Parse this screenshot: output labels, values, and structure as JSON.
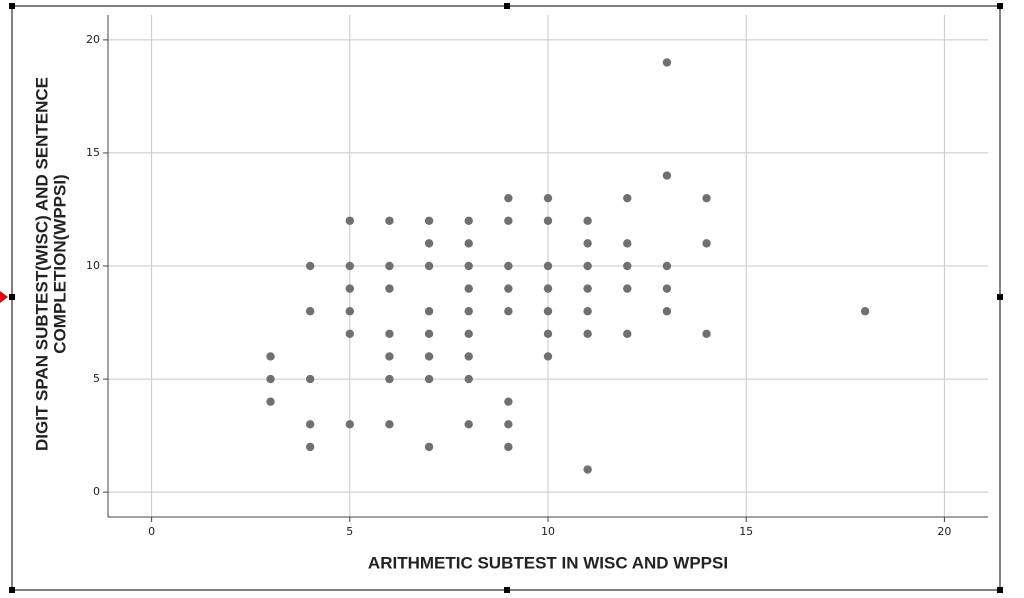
{
  "chart_data": {
    "type": "scatter",
    "xlabel": "ARITHMETIC SUBTEST IN WISC AND WPPSI",
    "ylabel": [
      "DIGIT SPAN SUBTEST(WISC) AND SENTENCE",
      "COMPLETION(WPPSI)"
    ],
    "x": [
      3,
      3,
      3,
      4,
      4,
      4,
      4,
      4,
      5,
      5,
      5,
      5,
      5,
      5,
      6,
      6,
      6,
      6,
      6,
      6,
      6,
      7,
      7,
      7,
      7,
      7,
      7,
      7,
      7,
      8,
      8,
      8,
      8,
      8,
      8,
      8,
      8,
      8,
      9,
      9,
      9,
      9,
      9,
      9,
      9,
      9,
      10,
      10,
      10,
      10,
      10,
      10,
      10,
      11,
      11,
      11,
      11,
      11,
      11,
      11,
      12,
      12,
      12,
      12,
      12,
      13,
      13,
      13,
      13,
      13,
      14,
      14,
      14,
      18
    ],
    "values": [
      6,
      5,
      4,
      10,
      8,
      5,
      3,
      2,
      12,
      10,
      9,
      8,
      7,
      3,
      12,
      10,
      9,
      7,
      6,
      5,
      3,
      12,
      11,
      10,
      8,
      7,
      6,
      5,
      2,
      12,
      11,
      10,
      9,
      8,
      7,
      6,
      5,
      3,
      13,
      12,
      10,
      9,
      8,
      4,
      3,
      2,
      13,
      12,
      10,
      9,
      8,
      7,
      6,
      12,
      11,
      10,
      9,
      8,
      7,
      1,
      13,
      11,
      10,
      9,
      7,
      19,
      14,
      10,
      9,
      8,
      13,
      11,
      7,
      8
    ],
    "color": "#707070",
    "xlim": [
      -1.1,
      21.1
    ],
    "ylim": [
      -1.1,
      21.1
    ],
    "xticks": [
      0,
      5,
      10,
      15,
      20
    ],
    "yticks": [
      0,
      5,
      10,
      15,
      20
    ],
    "grid": true
  }
}
